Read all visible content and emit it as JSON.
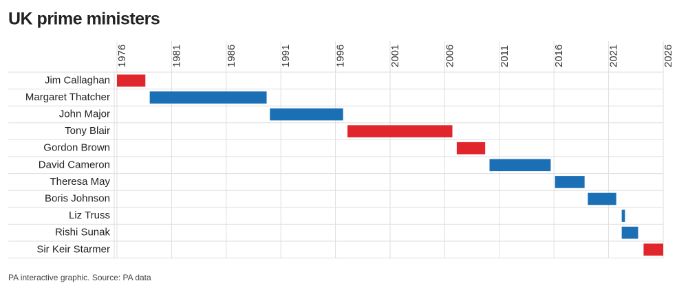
{
  "chart_data": {
    "type": "range-bar",
    "title": "UK prime ministers",
    "source": "PA interactive graphic. Source: PA data",
    "categories": [
      "Jim Callaghan",
      "Margaret Thatcher",
      "John Major",
      "Tony Blair",
      "Gordon Brown",
      "David Cameron",
      "Theresa May",
      "Boris Johnson",
      "Liz Truss",
      "Rishi Sunak",
      "Sir Keir Starmer"
    ],
    "start": [
      1976.0,
      1979.0,
      1990.0,
      1997.1,
      2007.1,
      2010.1,
      2016.1,
      2019.1,
      2022.2,
      2022.2,
      2024.2
    ],
    "end": [
      1978.6,
      1989.7,
      1996.7,
      2006.7,
      2009.7,
      2015.7,
      2018.8,
      2021.7,
      2022.5,
      2023.7,
      2026.0
    ],
    "colors": [
      "#e0262c",
      "#1a6fb5",
      "#1a6fb5",
      "#e0262c",
      "#e0262c",
      "#1a6fb5",
      "#1a6fb5",
      "#1a6fb5",
      "#1a6fb5",
      "#1a6fb5",
      "#e0262c"
    ],
    "xlim": [
      1976,
      2026
    ],
    "xticks": [
      1976,
      1981,
      1986,
      1991,
      1996,
      2001,
      2006,
      2011,
      2016,
      2021,
      2026
    ],
    "grid": true
  }
}
